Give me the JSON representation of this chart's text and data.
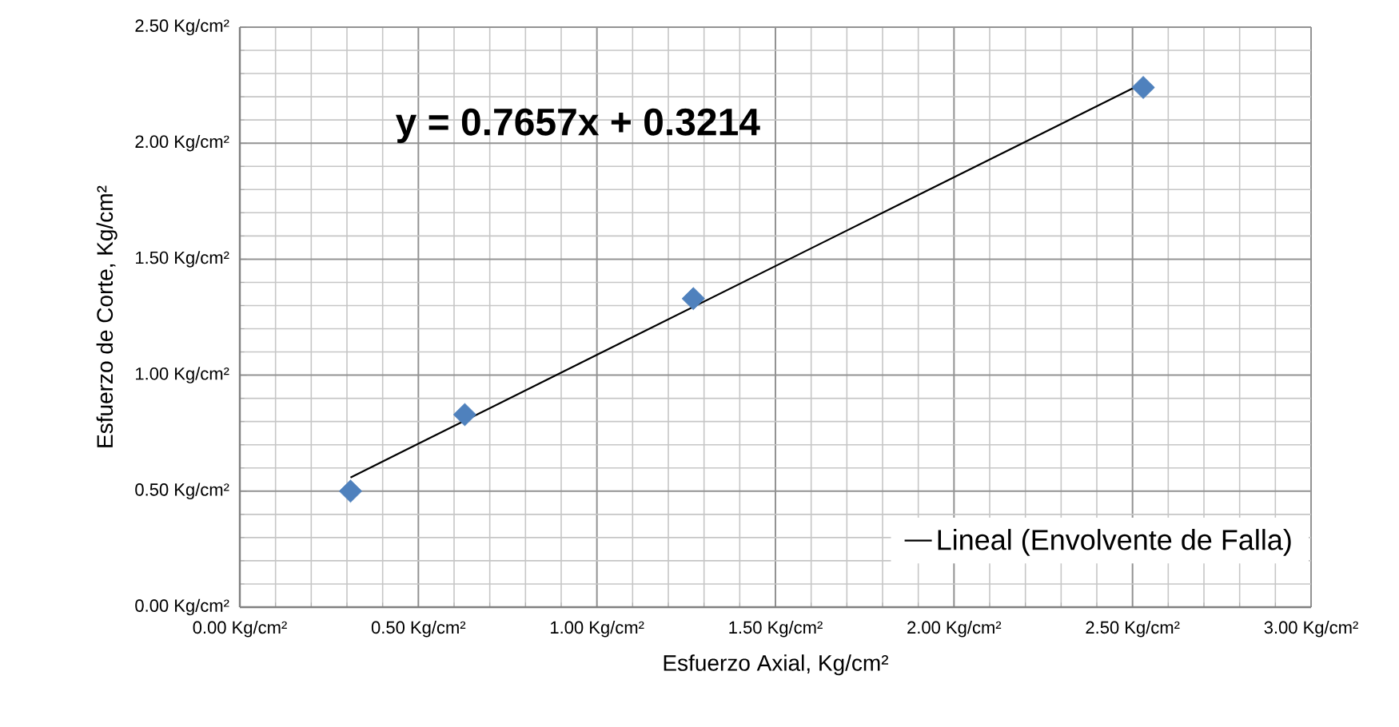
{
  "chart_data": {
    "type": "scatter",
    "xlabel": "Esfuerzo Axial, Kg/cm²",
    "ylabel": "Esfuerzo de Corte, Kg/cm²",
    "annotations": [
      "y = 0.7657x + 0.3214"
    ],
    "series": [
      {
        "color": "#4f81bd",
        "marker": "diamond",
        "x": [
          0.31,
          0.63,
          1.27,
          2.53
        ],
        "values": [
          0.5,
          0.83,
          1.33,
          2.24
        ]
      },
      {
        "type": "line",
        "name": "Lineal (Envolvente de Falla)",
        "color": "#000000",
        "marker": "none",
        "line_style": "solid",
        "x": [
          0.31,
          2.53
        ],
        "values": [
          0.559,
          2.259
        ]
      }
    ],
    "xlim": [
      0,
      3
    ],
    "ylim": [
      0,
      2.5
    ],
    "xticks": [
      {
        "value": 0,
        "label": "0.00 Kg/cm²"
      },
      {
        "value": 0.5,
        "label": "0.50 Kg/cm²"
      },
      {
        "value": 1,
        "label": "1.00 Kg/cm²"
      },
      {
        "value": 1.5,
        "label": "1.50 Kg/cm²"
      },
      {
        "value": 2,
        "label": "2.00 Kg/cm²"
      },
      {
        "value": 2.5,
        "label": "2.50 Kg/cm²"
      },
      {
        "value": 3,
        "label": "3.00 Kg/cm²"
      }
    ],
    "yticks": [
      {
        "value": 0,
        "label": "0.00 Kg/cm²"
      },
      {
        "value": 0.5,
        "label": "0.50 Kg/cm²"
      },
      {
        "value": 1,
        "label": "1.00 Kg/cm²"
      },
      {
        "value": 1.5,
        "label": "1.50 Kg/cm²"
      },
      {
        "value": 2,
        "label": "2.00 Kg/cm²"
      },
      {
        "value": 2.5,
        "label": "2.50 Kg/cm²"
      }
    ],
    "grid": true,
    "legend": "bottom right"
  }
}
